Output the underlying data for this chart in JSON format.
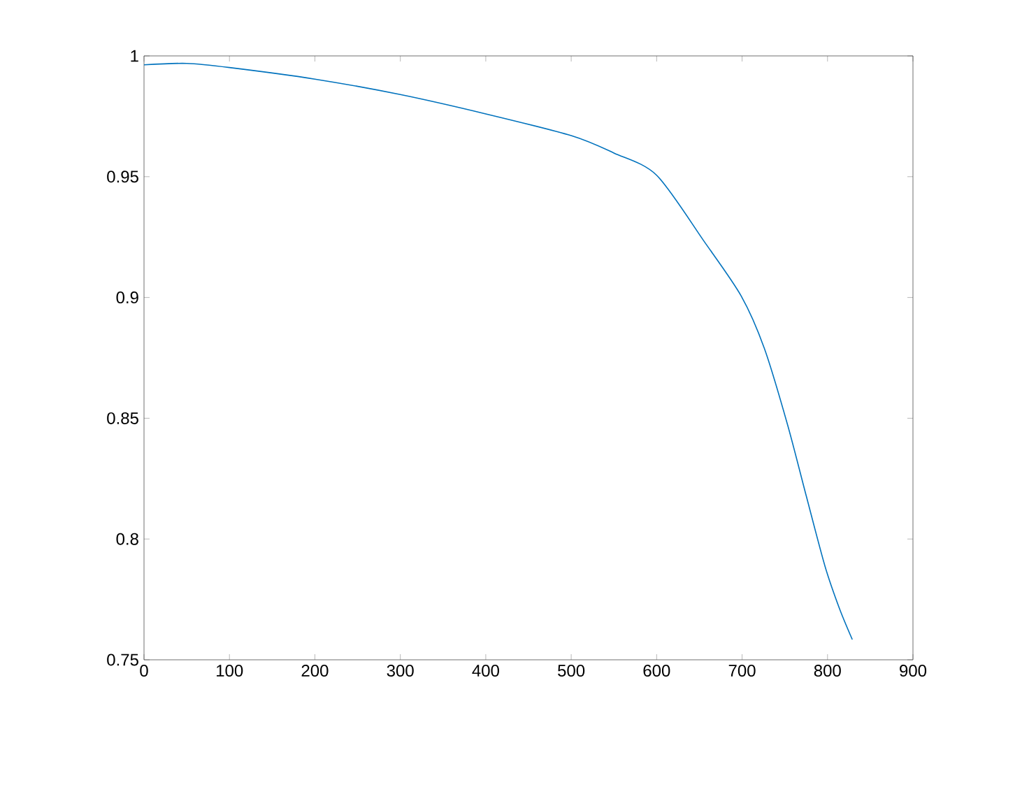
{
  "chart_data": {
    "type": "line",
    "x": [
      0,
      50,
      100,
      200,
      300,
      400,
      500,
      550,
      600,
      656,
      699,
      726,
      753,
      775,
      797,
      814,
      829
    ],
    "series": [
      {
        "color": "#0072bd",
        "values": [
          0.9963,
          0.9969,
          0.9952,
          0.9904,
          0.984,
          0.976,
          0.967,
          0.9598,
          0.9506,
          0.923,
          0.9006,
          0.879,
          0.8476,
          0.818,
          0.7888,
          0.7712,
          0.7584
        ]
      }
    ],
    "xlim": [
      0,
      900
    ],
    "ylim": [
      0.75,
      1
    ],
    "xticks": [
      0,
      100,
      200,
      300,
      400,
      500,
      600,
      700,
      800,
      900
    ],
    "yticks": [
      0.75,
      0.8,
      0.85,
      0.9,
      0.95,
      1
    ],
    "grid": false,
    "marker": "none",
    "line_style": "solid"
  }
}
